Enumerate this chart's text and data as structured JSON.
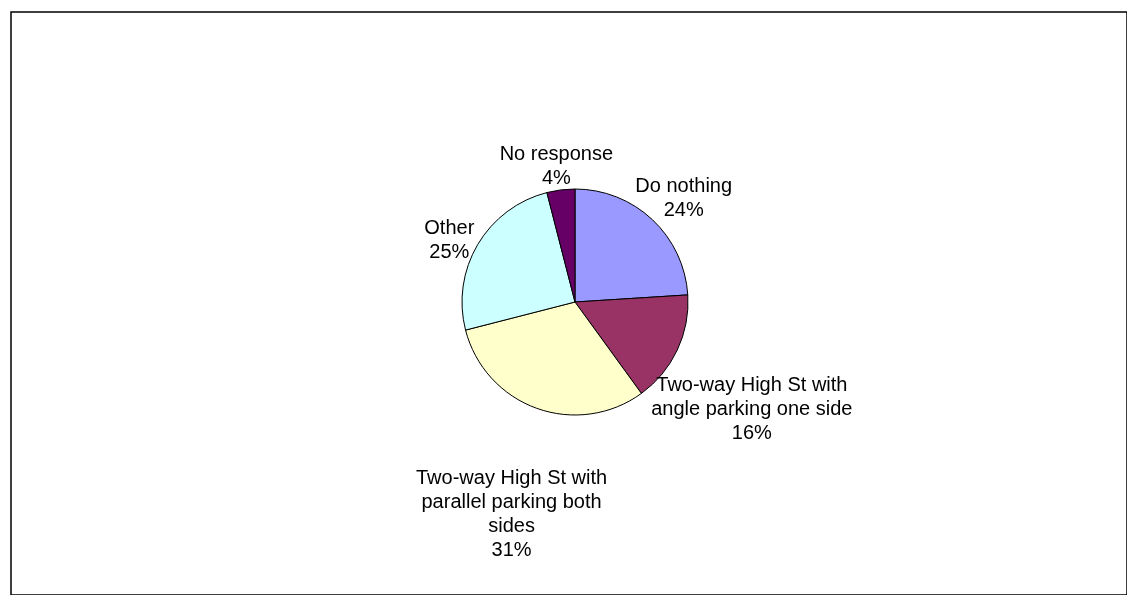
{
  "chart_data": {
    "type": "pie",
    "categories": [
      "Do nothing",
      "Two-way High St with angle parking one side",
      "Two-way High St with parallel parking both sides",
      "Other",
      "No response"
    ],
    "values": [
      24,
      16,
      31,
      25,
      4
    ],
    "colors": [
      "#9999ff",
      "#993366",
      "#ffffcc",
      "#ccffff",
      "#660066"
    ],
    "value_labels": [
      "24%",
      "16%",
      "31%",
      "25%",
      "4%"
    ]
  }
}
